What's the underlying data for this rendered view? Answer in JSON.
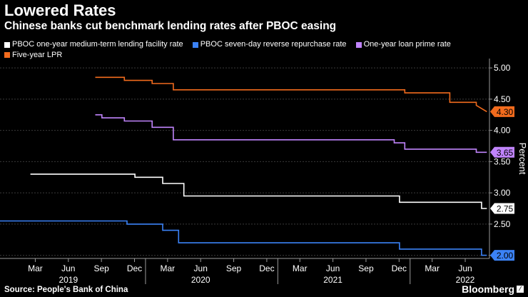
{
  "header": {
    "title": "Lowered Rates",
    "subtitle": "Chinese banks cut benchmark lending rates after PBOC easing"
  },
  "footer": {
    "source": "Source: People's Bank of China",
    "brand": "Bloomberg"
  },
  "chart_data": {
    "type": "line",
    "title": "Lowered Rates",
    "subtitle": "Chinese banks cut benchmark lending rates after PBOC easing",
    "ylabel": "Percent",
    "ylim": [
      1.95,
      5.15
    ],
    "yticks": [
      2.0,
      2.5,
      3.0,
      3.5,
      4.0,
      4.5,
      5.0
    ],
    "ytick_labels": [
      "2.00",
      "2.50",
      "3.00",
      "3.50",
      "4.00",
      "4.50",
      "5.00"
    ],
    "xlim": [
      2018.9,
      2022.6
    ],
    "xticks": [
      {
        "pos": 2019.1667,
        "label": "Mar"
      },
      {
        "pos": 2019.4167,
        "label": "Jun"
      },
      {
        "pos": 2019.6667,
        "label": "Sep"
      },
      {
        "pos": 2019.9167,
        "label": "Dec"
      },
      {
        "pos": 2020.1667,
        "label": "Mar"
      },
      {
        "pos": 2020.4167,
        "label": "Jun"
      },
      {
        "pos": 2020.6667,
        "label": "Sep"
      },
      {
        "pos": 2020.9167,
        "label": "Dec"
      },
      {
        "pos": 2021.1667,
        "label": "Mar"
      },
      {
        "pos": 2021.4167,
        "label": "Jun"
      },
      {
        "pos": 2021.6667,
        "label": "Sep"
      },
      {
        "pos": 2021.9167,
        "label": "Dec"
      },
      {
        "pos": 2022.1667,
        "label": "Mar"
      },
      {
        "pos": 2022.4167,
        "label": "Jun"
      }
    ],
    "year_labels": [
      {
        "pos": 2019.4167,
        "label": "2019"
      },
      {
        "pos": 2020.4167,
        "label": "2020"
      },
      {
        "pos": 2021.4167,
        "label": "2021"
      },
      {
        "pos": 2022.4167,
        "label": "2022"
      }
    ],
    "legend_position": "top",
    "grid": true,
    "series": [
      {
        "name": "PBOC one-year medium-term lending facility rate",
        "color": "#ffffff",
        "end_label": "2.75",
        "points": [
          [
            2019.13,
            3.3
          ],
          [
            2019.92,
            3.3
          ],
          [
            2019.92,
            3.25
          ],
          [
            2020.13,
            3.25
          ],
          [
            2020.13,
            3.15
          ],
          [
            2020.29,
            3.15
          ],
          [
            2020.29,
            2.95
          ],
          [
            2021.92,
            2.95
          ],
          [
            2021.92,
            2.85
          ],
          [
            2022.54,
            2.85
          ],
          [
            2022.54,
            2.75
          ],
          [
            2022.58,
            2.75
          ]
        ]
      },
      {
        "name": "PBOC seven-day reverse repurchase rate",
        "color": "#3b82f6",
        "end_label": "2.00",
        "points": [
          [
            2018.9,
            2.55
          ],
          [
            2019.86,
            2.55
          ],
          [
            2019.86,
            2.5
          ],
          [
            2020.13,
            2.5
          ],
          [
            2020.13,
            2.4
          ],
          [
            2020.25,
            2.4
          ],
          [
            2020.25,
            2.2
          ],
          [
            2021.92,
            2.2
          ],
          [
            2021.92,
            2.1
          ],
          [
            2022.54,
            2.1
          ],
          [
            2022.54,
            2.0
          ],
          [
            2022.58,
            2.0
          ]
        ]
      },
      {
        "name": "One-year loan prime rate",
        "color": "#c084fc",
        "end_label": "3.65",
        "points": [
          [
            2019.62,
            4.25
          ],
          [
            2019.67,
            4.25
          ],
          [
            2019.67,
            4.2
          ],
          [
            2019.84,
            4.2
          ],
          [
            2019.84,
            4.15
          ],
          [
            2020.05,
            4.15
          ],
          [
            2020.05,
            4.05
          ],
          [
            2020.21,
            4.05
          ],
          [
            2020.21,
            3.85
          ],
          [
            2021.88,
            3.85
          ],
          [
            2021.88,
            3.8
          ],
          [
            2021.96,
            3.8
          ],
          [
            2021.96,
            3.7
          ],
          [
            2022.5,
            3.7
          ],
          [
            2022.5,
            3.65
          ],
          [
            2022.58,
            3.65
          ]
        ]
      },
      {
        "name": "Five-year LPR",
        "color": "#f26b1d",
        "end_label": "4.30",
        "points": [
          [
            2019.62,
            4.85
          ],
          [
            2019.84,
            4.85
          ],
          [
            2019.84,
            4.8
          ],
          [
            2020.05,
            4.8
          ],
          [
            2020.05,
            4.75
          ],
          [
            2020.21,
            4.75
          ],
          [
            2020.21,
            4.65
          ],
          [
            2021.96,
            4.65
          ],
          [
            2021.96,
            4.6
          ],
          [
            2022.3,
            4.6
          ],
          [
            2022.3,
            4.45
          ],
          [
            2022.5,
            4.45
          ],
          [
            2022.5,
            4.4
          ],
          [
            2022.58,
            4.3
          ]
        ]
      }
    ]
  }
}
